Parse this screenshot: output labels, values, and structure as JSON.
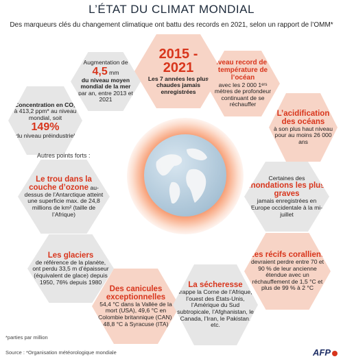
{
  "title": "L’ÉTAT DU CLIMAT MONDIAL",
  "subtitle": "Des marqueurs clés du changement climatique ont battu des records en 2021, selon un rapport de l’OMM*",
  "years": {
    "headline": "2015 -",
    "headline2": "2021",
    "text": "Les 7 années les plus chaudes jamais enregistrées"
  },
  "sea_level": {
    "intro": "Augmentation de",
    "value": "4,5",
    "unit": "mm",
    "text_bold": "du niveau moyen mondial de la mer",
    "text": "par an, entre 2013 et 2021"
  },
  "ocean_heat": {
    "title": "Niveau record de la température de l’océan",
    "text": "avec les 2 000 1ᵉʳˢ mètres de profondeur continuant de se réchauffer"
  },
  "co2": {
    "title": "Concentration en CO₂",
    "text": "à 413,2 ppm* au niveau mondial, soit",
    "value": "149%",
    "text2": "du niveau préindustriel"
  },
  "acid": {
    "title": "L’acidification des océans",
    "text": "à son plus haut niveau pour au moins 26 000 ans"
  },
  "others_label": "Autres points forts :",
  "ozone": {
    "title": "Le trou dans la couche d’ozone",
    "text": "au-dessus de l’Antarctique atteint une superficie max. de 24,8 millions de km² (taille de l’Afrique)"
  },
  "floods": {
    "text1": "Certaines des",
    "title": "inondations les plus graves",
    "text2": "jamais enregistrées en Europe occidentale à la mi-juillet"
  },
  "glaciers": {
    "title": "Les glaciers",
    "text": "de référence de la planète, ont perdu 33,5 m d’épaisseur (équivalent de glace) depuis 1950, 76% depuis 1980"
  },
  "reefs": {
    "title": "Les récifs coralliens",
    "text": "devraient perdre entre 70 et 90 % de leur ancienne étendue avec un réchauffement de 1,5 °C et plus de 99 % à 2 °C"
  },
  "heatwaves": {
    "title": "Des canicules exceptionnelles",
    "text": "54,4 °C dans la Vallée de la mort (USA), 49,6 °C en Colombie britannique (CAN), 48,8 °C à Syracuse (ITA)"
  },
  "drought": {
    "title": "La sécheresse",
    "text": "frappe la Corne de l’Afrique, l’ouest des États-Unis, l’Amérique du Sud subtropicale, l’Afghanistan, le Canada, l’Iran, le Pakistan, etc."
  },
  "footnote_ppm": "*parties par million",
  "source": "Source : *Organisation météorologique mondiale",
  "logo": "AFP",
  "colors": {
    "accent": "#d8351c",
    "pink": "#f7d4c6",
    "grey": "#e6e6e6"
  }
}
